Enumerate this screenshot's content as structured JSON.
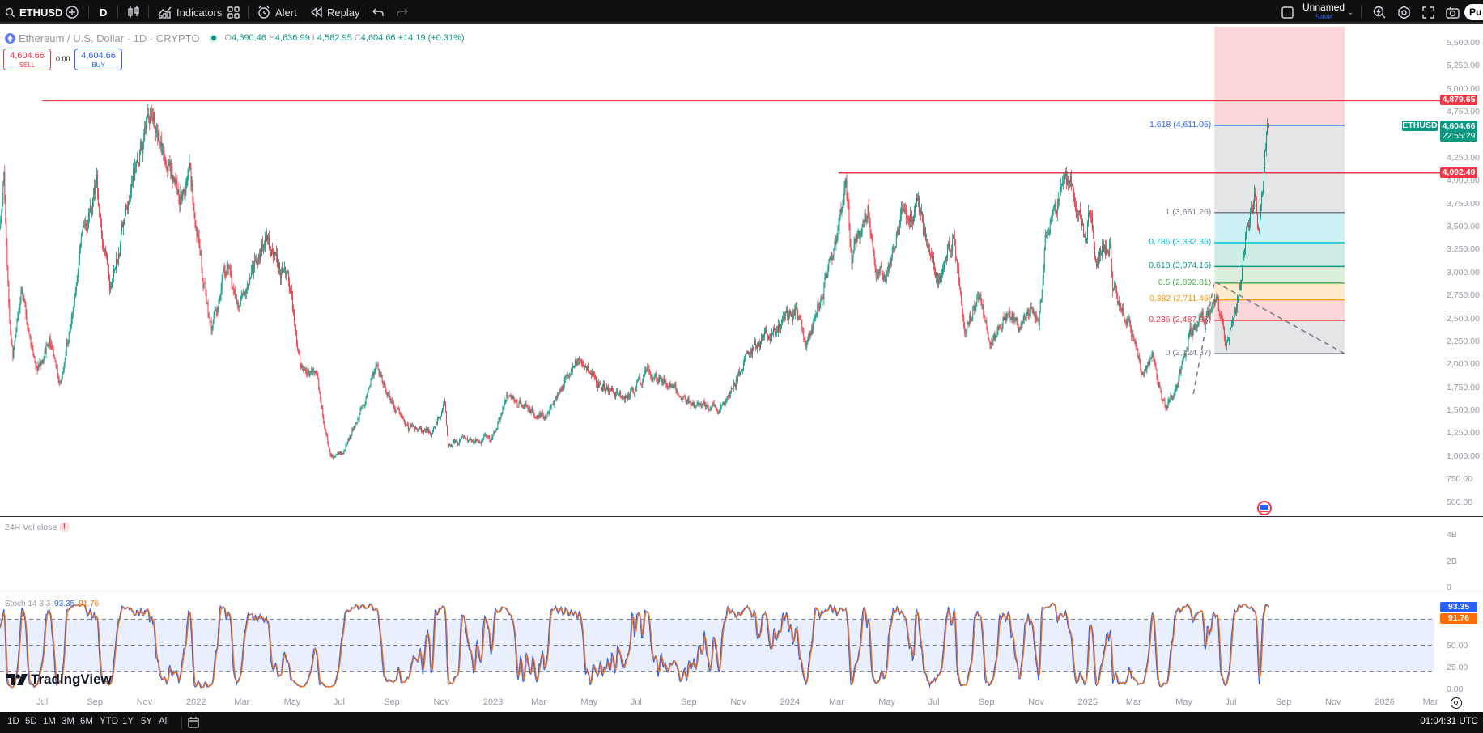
{
  "toolbar": {
    "symbol": "ETHUSD",
    "interval": "D",
    "indicators_label": "Indicators",
    "alert_label": "Alert",
    "replay_label": "Replay",
    "layout_name": "Unnamed",
    "save_label": "Save",
    "publish_label": "Pu"
  },
  "legend": {
    "title": "Ethereum / U.S. Dollar · 1D · CRYPTO",
    "open_prefix": "O",
    "open": "4,590.46",
    "high_prefix": "H",
    "high": "4,636.99",
    "low_prefix": "L",
    "low": "4,582.95",
    "close_prefix": "C",
    "close": "4,604.66",
    "change": "+14.19 (+0.31%)"
  },
  "trade": {
    "sell_price": "4,604.66",
    "sell_label": "SELL",
    "spread": "0.00",
    "buy_price": "4,604.66",
    "buy_label": "BUY"
  },
  "colors": {
    "up": "#089981",
    "down": "#f23645",
    "blue": "#2962ff",
    "orange": "#ff6d00"
  },
  "price_axis": [
    "5,500.00",
    "5,250.00",
    "5,000.00",
    "4,750.00",
    "4,250.00",
    "4,000.00",
    "3,750.00",
    "3,500.00",
    "3,250.00",
    "3,000.00",
    "2,750.00",
    "2,500.00",
    "2,250.00",
    "2,000.00",
    "1,750.00",
    "1,500.00",
    "1,250.00",
    "1,000.00",
    "750.00",
    "500.00"
  ],
  "price_badges": {
    "resistance_high": {
      "label": "4,879.65",
      "price": 4879.65
    },
    "resistance_mid": {
      "label": "4,092.49",
      "price": 4092.49
    },
    "symbol_tag": "ETHUSD",
    "last_price": "4,604.66",
    "countdown": "22:55:29"
  },
  "horizontal_lines": [
    {
      "price": 4879.65,
      "from": "2021-06-28"
    },
    {
      "price": 4092.49,
      "from": "2024-03-03"
    }
  ],
  "fib": {
    "from": "2025-06-08",
    "to": "2025-11-15",
    "levels": [
      {
        "label": "1.618 (4,611.05)",
        "price": 4611.05,
        "color": "#2962ff"
      },
      {
        "label": "1 (3,661.26)",
        "price": 3661.26,
        "color": "#787b86"
      },
      {
        "label": "0.786 (3,332.36)",
        "price": 3332.36,
        "color": "#00bcd4"
      },
      {
        "label": "0.618 (3,074.16)",
        "price": 3074.16,
        "color": "#089981"
      },
      {
        "label": "0.5 (2,892.81)",
        "price": 2892.81,
        "color": "#4caf50"
      },
      {
        "label": "0.382 (2,711.46)",
        "price": 2711.46,
        "color": "#ff9800"
      },
      {
        "label": "0.236 (2,487.07)",
        "price": 2487.07,
        "color": "#f23645"
      },
      {
        "label": "0 (2,124.37)",
        "price": 2124.37,
        "color": "#787b86"
      }
    ],
    "trend": [
      [
        "2025-05-13",
        1685
      ],
      [
        "2025-06-08",
        2910
      ],
      [
        "2025-11-15",
        2124
      ]
    ]
  },
  "price_path": [
    [
      "2021-05-07",
      3480
    ],
    [
      "2021-05-12",
      4170
    ],
    [
      "2021-05-19",
      2450
    ],
    [
      "2021-05-23",
      2100
    ],
    [
      "2021-06-03",
      2850
    ],
    [
      "2021-06-22",
      1900
    ],
    [
      "2021-07-07",
      2320
    ],
    [
      "2021-07-20",
      1790
    ],
    [
      "2021-08-13",
      3300
    ],
    [
      "2021-09-03",
      3930
    ],
    [
      "2021-09-21",
      2760
    ],
    [
      "2021-10-05",
      3500
    ],
    [
      "2021-10-21",
      4150
    ],
    [
      "2021-11-09",
      4800
    ],
    [
      "2021-11-27",
      4100
    ],
    [
      "2021-12-04",
      4100
    ],
    [
      "2021-12-13",
      3800
    ],
    [
      "2021-12-27",
      4050
    ],
    [
      "2022-01-22",
      2400
    ],
    [
      "2022-02-10",
      3100
    ],
    [
      "2022-02-24",
      2600
    ],
    [
      "2022-03-29",
      3400
    ],
    [
      "2022-04-30",
      2800
    ],
    [
      "2022-05-12",
      1950
    ],
    [
      "2022-05-31",
      1950
    ],
    [
      "2022-06-18",
      1000
    ],
    [
      "2022-07-01",
      1060
    ],
    [
      "2022-08-13",
      1980
    ],
    [
      "2022-09-21",
      1300
    ],
    [
      "2022-10-20",
      1280
    ],
    [
      "2022-11-05",
      1600
    ],
    [
      "2022-11-09",
      1150
    ],
    [
      "2022-12-31",
      1200
    ],
    [
      "2023-01-20",
      1650
    ],
    [
      "2023-03-10",
      1430
    ],
    [
      "2023-04-15",
      2100
    ],
    [
      "2023-05-12",
      1800
    ],
    [
      "2023-06-15",
      1640
    ],
    [
      "2023-07-14",
      1950
    ],
    [
      "2023-08-17",
      1680
    ],
    [
      "2023-09-11",
      1550
    ],
    [
      "2023-10-12",
      1540
    ],
    [
      "2023-11-10",
      2080
    ],
    [
      "2023-12-09",
      2350
    ],
    [
      "2024-01-11",
      2600
    ],
    [
      "2024-01-23",
      2240
    ],
    [
      "2024-02-29",
      3400
    ],
    [
      "2024-03-12",
      4000
    ],
    [
      "2024-03-19",
      3150
    ],
    [
      "2024-04-08",
      3700
    ],
    [
      "2024-04-17",
      3000
    ],
    [
      "2024-05-01",
      2980
    ],
    [
      "2024-05-20",
      3680
    ],
    [
      "2024-06-10",
      3650
    ],
    [
      "2024-07-05",
      2900
    ],
    [
      "2024-07-22",
      3450
    ],
    [
      "2024-08-05",
      2420
    ],
    [
      "2024-08-24",
      2750
    ],
    [
      "2024-09-06",
      2230
    ],
    [
      "2024-09-27",
      2650
    ],
    [
      "2024-10-10",
      2380
    ],
    [
      "2024-10-29",
      2650
    ],
    [
      "2024-11-04",
      2420
    ],
    [
      "2024-11-12",
      3400
    ],
    [
      "2024-12-06",
      3950
    ],
    [
      "2024-12-16",
      3970
    ],
    [
      "2024-12-31",
      3330
    ],
    [
      "2025-01-06",
      3680
    ],
    [
      "2025-01-13",
      3150
    ],
    [
      "2025-01-31",
      3300
    ],
    [
      "2025-02-03",
      2850
    ],
    [
      "2025-02-25",
      2400
    ],
    [
      "2025-03-11",
      1900
    ],
    [
      "2025-03-24",
      2080
    ],
    [
      "2025-04-09",
      1520
    ],
    [
      "2025-04-22",
      1780
    ],
    [
      "2025-05-09",
      2350
    ],
    [
      "2025-05-31",
      2530
    ],
    [
      "2025-06-10",
      2770
    ],
    [
      "2025-06-22",
      2230
    ],
    [
      "2025-07-03",
      2590
    ],
    [
      "2025-07-11",
      2960
    ],
    [
      "2025-07-18",
      3600
    ],
    [
      "2025-07-28",
      3850
    ],
    [
      "2025-08-02",
      3400
    ],
    [
      "2025-08-09",
      4270
    ],
    [
      "2025-08-13",
      4590.46
    ],
    [
      "2025-08-14",
      4604.66
    ]
  ],
  "volume_pane": {
    "title": "24H Vol close",
    "axis": [
      "4B",
      "2B",
      "0"
    ]
  },
  "stoch": {
    "title": "Stoch 14 3 3",
    "k": "93.35",
    "d": "91.76",
    "axis": [
      "50.00",
      "25.00",
      "0.00"
    ],
    "levels": [
      80,
      50,
      20
    ]
  },
  "time_axis": [
    [
      "Jul",
      "2021-07-01"
    ],
    [
      "Sep",
      "2021-09-01"
    ],
    [
      "Nov",
      "2021-11-01"
    ],
    [
      "2022",
      "2022-01-01"
    ],
    [
      "Mar",
      "2022-03-01"
    ],
    [
      "May",
      "2022-05-01"
    ],
    [
      "Jul",
      "2022-07-01"
    ],
    [
      "Sep",
      "2022-09-01"
    ],
    [
      "Nov",
      "2022-11-01"
    ],
    [
      "2023",
      "2023-01-01"
    ],
    [
      "Mar",
      "2023-03-01"
    ],
    [
      "May",
      "2023-05-01"
    ],
    [
      "Jul",
      "2023-07-01"
    ],
    [
      "Sep",
      "2023-09-01"
    ],
    [
      "Nov",
      "2023-11-01"
    ],
    [
      "2024",
      "2024-01-01"
    ],
    [
      "Mar",
      "2024-03-01"
    ],
    [
      "May",
      "2024-05-01"
    ],
    [
      "Jul",
      "2024-07-01"
    ],
    [
      "Sep",
      "2024-09-01"
    ],
    [
      "Nov",
      "2024-11-01"
    ],
    [
      "2025",
      "2025-01-01"
    ],
    [
      "Mar",
      "2025-03-01"
    ],
    [
      "May",
      "2025-05-01"
    ],
    [
      "Jul",
      "2025-07-01"
    ],
    [
      "Sep",
      "2025-09-01"
    ],
    [
      "Nov",
      "2025-11-01"
    ],
    [
      "2026",
      "2026-01-01"
    ],
    [
      "Mar",
      "2026-03-01"
    ]
  ],
  "ranges": [
    "1D",
    "5D",
    "1M",
    "3M",
    "6M",
    "YTD",
    "1Y",
    "5Y",
    "All"
  ],
  "clock": "01:04:31 UTC",
  "brand": "TradingView"
}
